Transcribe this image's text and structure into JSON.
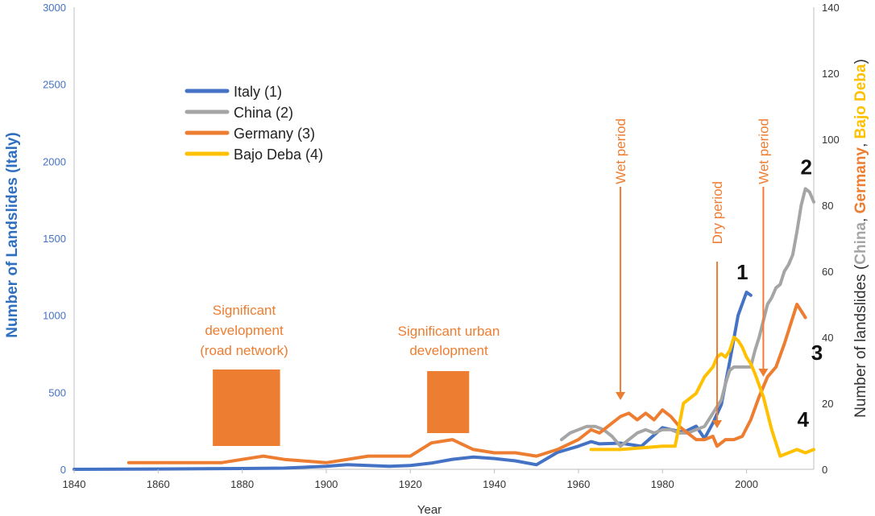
{
  "chart_data": {
    "type": "line",
    "xlabel": "Year",
    "ylabel_left": "Number of Landslides (Italy)",
    "ylabel_right_parts": [
      {
        "text": "Number of landslides (",
        "color": "#333333"
      },
      {
        "text": "China",
        "color": "#a5a5a5"
      },
      {
        "text": ", ",
        "color": "#333333"
      },
      {
        "text": "Germany",
        "color": "#ed7d31"
      },
      {
        "text": ", ",
        "color": "#333333"
      },
      {
        "text": "Bajo Deba",
        "color": "#ffc000"
      },
      {
        "text": ")",
        "color": "#333333"
      }
    ],
    "xlim": [
      1840,
      2016
    ],
    "ylim_left": [
      0,
      3000
    ],
    "ylim_right": [
      0,
      140
    ],
    "x_ticks": [
      "1840",
      "1860",
      "1880",
      "1900",
      "1920",
      "1940",
      "1960",
      "1980",
      "2000"
    ],
    "y_left_ticks": [
      "0",
      "500",
      "1000",
      "1500",
      "2000",
      "2500",
      "3000"
    ],
    "y_right_ticks": [
      "0",
      "20",
      "40",
      "60",
      "80",
      "100",
      "120",
      "140"
    ],
    "series": [
      {
        "name": "Italy (1)",
        "label": "1",
        "axis": "left",
        "color": "#4472c4",
        "x": [
          1840,
          1860,
          1880,
          1890,
          1900,
          1905,
          1910,
          1915,
          1920,
          1925,
          1930,
          1935,
          1940,
          1945,
          1950,
          1955,
          1960,
          1963,
          1965,
          1970,
          1975,
          1980,
          1985,
          1988,
          1990,
          1992,
          1994,
          1996,
          1998,
          2000,
          2001
        ],
        "y": [
          0,
          2,
          5,
          8,
          20,
          30,
          25,
          20,
          25,
          40,
          65,
          80,
          70,
          55,
          30,
          110,
          150,
          180,
          165,
          170,
          150,
          270,
          240,
          280,
          200,
          300,
          420,
          700,
          1000,
          1150,
          1130
        ]
      },
      {
        "name": "China (2)",
        "label": "2",
        "axis": "right",
        "color": "#a5a5a5",
        "x": [
          1956,
          1958,
          1960,
          1962,
          1964,
          1966,
          1968,
          1970,
          1972,
          1974,
          1976,
          1978,
          1980,
          1982,
          1984,
          1986,
          1988,
          1990,
          1991,
          1992,
          1993,
          1994,
          1995,
          1996,
          1997,
          1998,
          1999,
          2000,
          2001,
          2002,
          2003,
          2004,
          2005,
          2006,
          2007,
          2008,
          2009,
          2010,
          2011,
          2012,
          2013,
          2014,
          2015,
          2016
        ],
        "y": [
          9,
          11,
          12,
          13,
          13,
          12,
          10,
          7,
          9,
          11,
          12,
          11,
          12,
          12,
          11,
          11,
          12,
          13,
          15,
          17,
          19,
          21,
          26,
          30,
          31,
          31,
          31,
          31,
          31,
          36,
          40,
          45,
          50,
          52,
          55,
          56,
          60,
          62,
          65,
          72,
          80,
          85,
          84,
          81
        ]
      },
      {
        "name": "Germany (3)",
        "label": "3",
        "axis": "right",
        "color": "#ed7d31",
        "x": [
          1853,
          1865,
          1875,
          1880,
          1885,
          1890,
          1900,
          1910,
          1915,
          1920,
          1925,
          1930,
          1935,
          1940,
          1945,
          1950,
          1955,
          1960,
          1963,
          1965,
          1967,
          1970,
          1972,
          1974,
          1976,
          1978,
          1980,
          1982,
          1984,
          1986,
          1988,
          1990,
          1992,
          1993,
          1995,
          1997,
          1999,
          2001,
          2003,
          2005,
          2007,
          2009,
          2010,
          2011,
          2012,
          2013,
          2014
        ],
        "y": [
          2,
          2,
          2,
          3,
          4,
          3,
          2,
          4,
          4,
          4,
          8,
          9,
          6,
          5,
          5,
          4,
          6,
          9,
          12,
          11,
          13,
          16,
          17,
          15,
          17,
          15,
          18,
          16,
          13,
          11,
          9,
          9,
          10,
          7,
          9,
          9,
          10,
          15,
          22,
          28,
          31,
          38,
          42,
          46,
          50,
          48,
          46
        ]
      },
      {
        "name": "Bajo Deba (4)",
        "label": "4",
        "axis": "right",
        "color": "#ffc000",
        "x": [
          1963,
          1970,
          1975,
          1980,
          1983,
          1985,
          1988,
          1990,
          1992,
          1993,
          1994,
          1995,
          1996,
          1997,
          1998,
          1999,
          2000,
          2001,
          2002,
          2004,
          2006,
          2008,
          2010,
          2012,
          2014,
          2016
        ],
        "y": [
          6,
          6,
          6.5,
          7,
          7,
          20,
          23,
          28,
          31,
          34,
          35,
          34,
          36,
          40,
          39,
          37,
          34,
          32,
          29,
          22,
          12,
          4,
          5,
          6,
          5,
          6
        ]
      }
    ],
    "legend": {
      "placement": "upper-left"
    },
    "annotations": [
      {
        "lines": [
          "Significant",
          "development",
          "(road network)"
        ]
      },
      {
        "lines": [
          "Significant urban",
          "development"
        ]
      },
      {
        "text": "Wet period",
        "year": 1970
      },
      {
        "text": "Dry period",
        "year": 1993
      },
      {
        "text": "Wet period",
        "year": 2004
      }
    ],
    "shaded_boxes": [
      {
        "from_year": 1873,
        "to_year": 1889
      },
      {
        "from_year": 1924,
        "to_year": 1934
      }
    ]
  }
}
